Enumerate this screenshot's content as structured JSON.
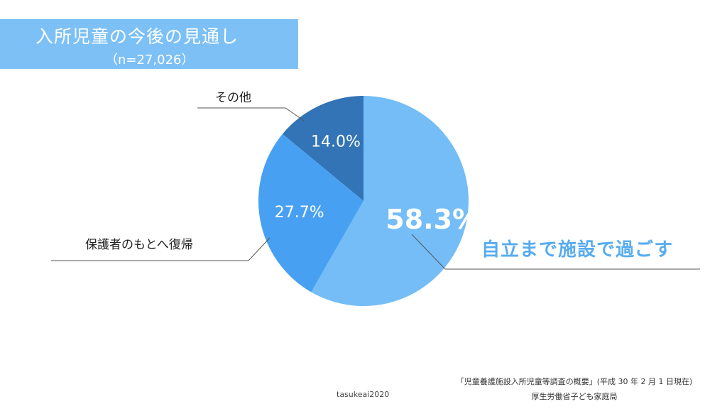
{
  "title": {
    "main": "入所児童の今後の見通し",
    "sub": "（n=27,026）"
  },
  "chart_data": {
    "type": "pie",
    "title": "入所児童の今後の見通し",
    "subtitle": "（n=27,026）",
    "slices": [
      {
        "label": "自立まで施設で過ごす",
        "value": 58.3,
        "display": "58.3%",
        "color": "#74bdf7"
      },
      {
        "label": "保護者のもとへ復帰",
        "value": 27.7,
        "display": "27.7%",
        "color": "#48a0f2"
      },
      {
        "label": "その他",
        "value": 14.0,
        "display": "14.0%",
        "color": "#3274b6"
      }
    ]
  },
  "source": {
    "line1": "「児童養護施設入所児童等調査の概要」(平成 30 年 2 月 1 日現在)",
    "line2": "厚生労働省子ども家庭局"
  },
  "credit": "tasukeai2020"
}
